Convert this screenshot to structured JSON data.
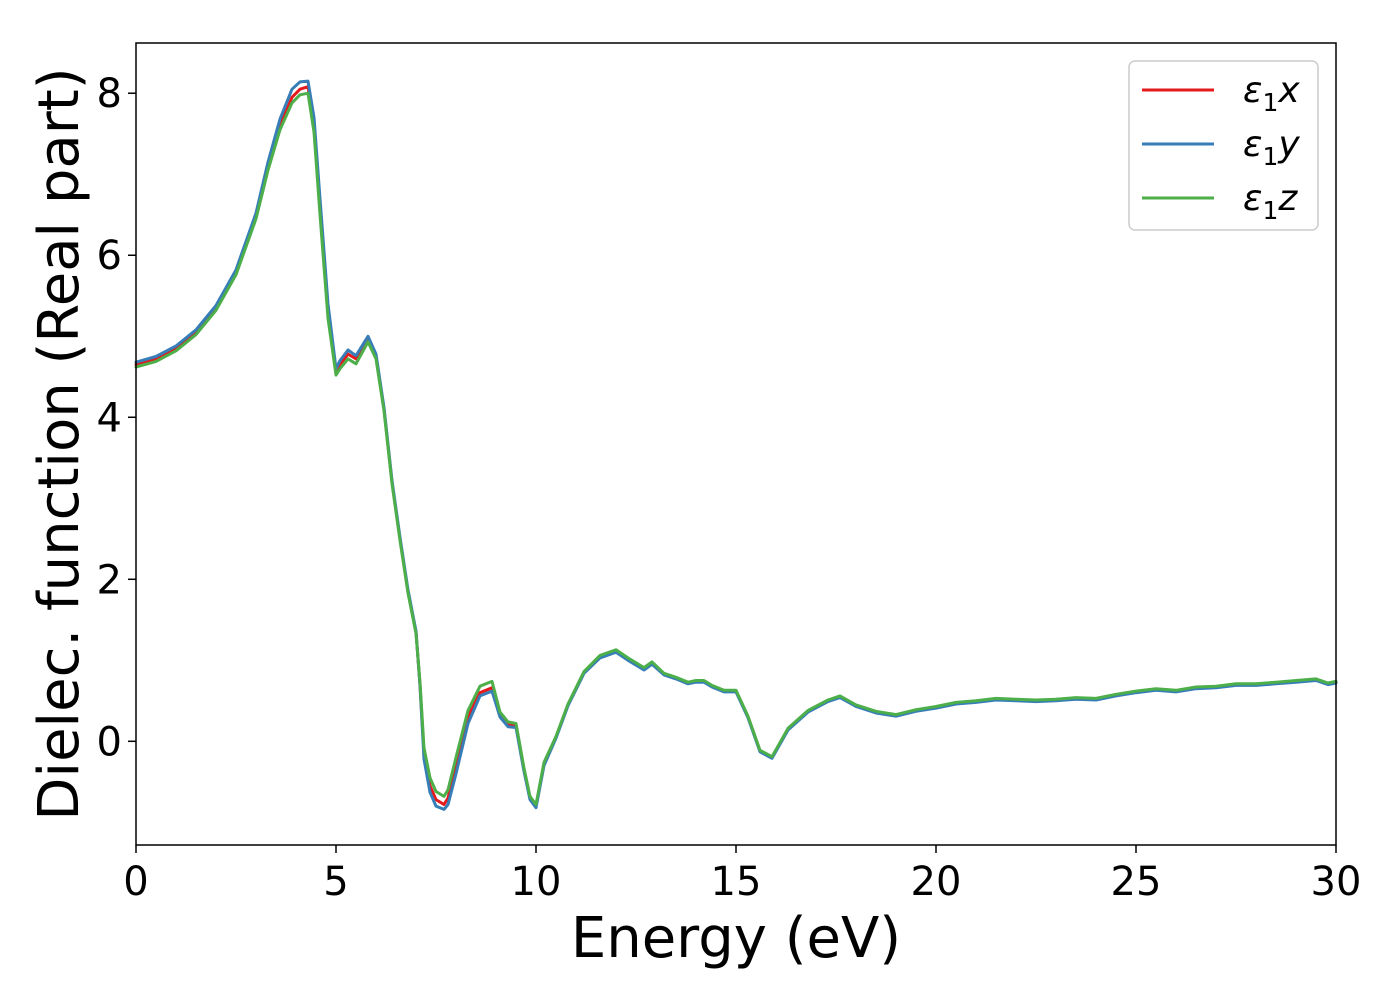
{
  "chart_data": {
    "type": "line",
    "title": "",
    "xlabel": "Energy (eV)",
    "ylabel": "Dielec. function (Real part)",
    "xlim": [
      0,
      30
    ],
    "ylim": [
      -1.28,
      8.62
    ],
    "xticks": [
      0,
      5,
      10,
      15,
      20,
      25,
      30
    ],
    "yticks": [
      0,
      2,
      4,
      6,
      8
    ],
    "grid": false,
    "legend_position": "top-right",
    "series": [
      {
        "name": "ε₁x",
        "label_base": "ε",
        "label_sub": "1",
        "label_axis": "x",
        "color": "#e41a1c",
        "x": [
          0,
          0.5,
          1,
          1.5,
          2,
          2.5,
          3,
          3.3,
          3.6,
          3.9,
          4.1,
          4.3,
          4.45,
          4.6,
          4.8,
          5.0,
          5.1,
          5.3,
          5.5,
          5.8,
          6.0,
          6.2,
          6.4,
          6.6,
          6.8,
          7.0,
          7.1,
          7.2,
          7.35,
          7.5,
          7.7,
          7.8,
          8.0,
          8.3,
          8.6,
          8.9,
          9.1,
          9.3,
          9.5,
          9.7,
          9.85,
          10.0,
          10.2,
          10.5,
          10.8,
          11.2,
          11.6,
          12.0,
          12.3,
          12.7,
          12.9,
          13.2,
          13.5,
          13.8,
          14.0,
          14.2,
          14.4,
          14.7,
          15.0,
          15.3,
          15.6,
          15.9,
          16.3,
          16.8,
          17.3,
          17.6,
          18.0,
          18.5,
          19.0,
          19.5,
          20.0,
          20.5,
          21.0,
          21.5,
          22.0,
          22.5,
          23.0,
          23.5,
          24.0,
          24.5,
          25.0,
          25.5,
          26.0,
          26.5,
          27.0,
          27.5,
          28.0,
          28.5,
          29.0,
          29.5,
          29.8,
          30.0
        ],
        "y": [
          4.65,
          4.72,
          4.85,
          5.05,
          5.35,
          5.8,
          6.5,
          7.1,
          7.6,
          7.95,
          8.05,
          8.08,
          7.6,
          6.6,
          5.3,
          4.57,
          4.65,
          4.78,
          4.72,
          4.97,
          4.75,
          4.1,
          3.2,
          2.5,
          1.85,
          1.35,
          0.7,
          -0.15,
          -0.55,
          -0.72,
          -0.78,
          -0.7,
          -0.3,
          0.3,
          0.6,
          0.66,
          0.32,
          0.2,
          0.2,
          -0.35,
          -0.7,
          -0.8,
          -0.28,
          0.05,
          0.45,
          0.85,
          1.05,
          1.12,
          1.02,
          0.9,
          0.97,
          0.83,
          0.78,
          0.72,
          0.74,
          0.74,
          0.68,
          0.62,
          0.62,
          0.3,
          -0.12,
          -0.2,
          0.15,
          0.37,
          0.5,
          0.55,
          0.44,
          0.36,
          0.32,
          0.38,
          0.42,
          0.47,
          0.49,
          0.52,
          0.51,
          0.5,
          0.51,
          0.53,
          0.52,
          0.57,
          0.61,
          0.64,
          0.62,
          0.66,
          0.67,
          0.7,
          0.7,
          0.72,
          0.74,
          0.76,
          0.71,
          0.73
        ]
      },
      {
        "name": "ε₁y",
        "label_base": "ε",
        "label_sub": "1",
        "label_axis": "y",
        "color": "#377eb8",
        "x": [
          0,
          0.5,
          1,
          1.5,
          2,
          2.5,
          3,
          3.3,
          3.6,
          3.9,
          4.1,
          4.3,
          4.45,
          4.6,
          4.8,
          5.0,
          5.1,
          5.3,
          5.5,
          5.8,
          6.0,
          6.2,
          6.4,
          6.6,
          6.8,
          7.0,
          7.1,
          7.2,
          7.35,
          7.5,
          7.7,
          7.8,
          8.0,
          8.3,
          8.6,
          8.9,
          9.1,
          9.3,
          9.5,
          9.7,
          9.85,
          10.0,
          10.2,
          10.5,
          10.8,
          11.2,
          11.6,
          12.0,
          12.3,
          12.7,
          12.9,
          13.2,
          13.5,
          13.8,
          14.0,
          14.2,
          14.4,
          14.7,
          15.0,
          15.3,
          15.6,
          15.9,
          16.3,
          16.8,
          17.3,
          17.6,
          18.0,
          18.5,
          19.0,
          19.5,
          20.0,
          20.5,
          21.0,
          21.5,
          22.0,
          22.5,
          23.0,
          23.5,
          24.0,
          24.5,
          25.0,
          25.5,
          26.0,
          26.5,
          27.0,
          27.5,
          28.0,
          28.5,
          29.0,
          29.5,
          29.8,
          30.0
        ],
        "y": [
          4.68,
          4.75,
          4.88,
          5.08,
          5.38,
          5.82,
          6.52,
          7.15,
          7.68,
          8.05,
          8.14,
          8.15,
          7.7,
          6.7,
          5.4,
          4.6,
          4.7,
          4.83,
          4.76,
          5.0,
          4.78,
          4.12,
          3.22,
          2.52,
          1.87,
          1.36,
          0.68,
          -0.22,
          -0.63,
          -0.8,
          -0.84,
          -0.78,
          -0.4,
          0.22,
          0.56,
          0.62,
          0.3,
          0.18,
          0.17,
          -0.37,
          -0.72,
          -0.82,
          -0.3,
          0.04,
          0.44,
          0.84,
          1.03,
          1.1,
          1.0,
          0.88,
          0.95,
          0.82,
          0.77,
          0.71,
          0.73,
          0.73,
          0.67,
          0.61,
          0.61,
          0.29,
          -0.13,
          -0.21,
          0.14,
          0.36,
          0.49,
          0.54,
          0.43,
          0.35,
          0.31,
          0.37,
          0.41,
          0.46,
          0.48,
          0.51,
          0.5,
          0.49,
          0.5,
          0.52,
          0.51,
          0.56,
          0.6,
          0.63,
          0.61,
          0.65,
          0.66,
          0.69,
          0.69,
          0.71,
          0.73,
          0.75,
          0.7,
          0.72
        ]
      },
      {
        "name": "ε₁z",
        "label_base": "ε",
        "label_sub": "1",
        "label_axis": "z",
        "color": "#4daf4a",
        "x": [
          0,
          0.5,
          1,
          1.5,
          2,
          2.5,
          3,
          3.3,
          3.6,
          3.9,
          4.1,
          4.3,
          4.45,
          4.6,
          4.8,
          5.0,
          5.1,
          5.3,
          5.5,
          5.8,
          6.0,
          6.2,
          6.4,
          6.6,
          6.8,
          7.0,
          7.1,
          7.2,
          7.35,
          7.5,
          7.7,
          7.8,
          8.0,
          8.3,
          8.6,
          8.9,
          9.1,
          9.3,
          9.5,
          9.7,
          9.85,
          10.0,
          10.2,
          10.5,
          10.8,
          11.2,
          11.6,
          12.0,
          12.3,
          12.7,
          12.9,
          13.2,
          13.5,
          13.8,
          14.0,
          14.2,
          14.4,
          14.7,
          15.0,
          15.3,
          15.6,
          15.9,
          16.3,
          16.8,
          17.3,
          17.6,
          18.0,
          18.5,
          19.0,
          19.5,
          20.0,
          20.5,
          21.0,
          21.5,
          22.0,
          22.5,
          23.0,
          23.5,
          24.0,
          24.5,
          25.0,
          25.5,
          26.0,
          26.5,
          27.0,
          27.5,
          28.0,
          28.5,
          29.0,
          29.5,
          29.8,
          30.0
        ],
        "y": [
          4.62,
          4.69,
          4.82,
          5.02,
          5.32,
          5.76,
          6.45,
          7.05,
          7.55,
          7.88,
          7.98,
          8.0,
          7.52,
          6.5,
          5.22,
          4.52,
          4.6,
          4.72,
          4.66,
          4.93,
          4.72,
          4.08,
          3.18,
          2.48,
          1.83,
          1.33,
          0.73,
          -0.08,
          -0.45,
          -0.62,
          -0.68,
          -0.6,
          -0.2,
          0.38,
          0.68,
          0.74,
          0.36,
          0.24,
          0.22,
          -0.33,
          -0.68,
          -0.78,
          -0.26,
          0.06,
          0.46,
          0.86,
          1.06,
          1.13,
          1.03,
          0.91,
          0.98,
          0.84,
          0.79,
          0.73,
          0.75,
          0.75,
          0.69,
          0.63,
          0.63,
          0.31,
          -0.11,
          -0.19,
          0.16,
          0.38,
          0.51,
          0.56,
          0.45,
          0.37,
          0.33,
          0.39,
          0.43,
          0.48,
          0.5,
          0.53,
          0.52,
          0.51,
          0.52,
          0.54,
          0.53,
          0.58,
          0.62,
          0.65,
          0.63,
          0.67,
          0.68,
          0.71,
          0.71,
          0.73,
          0.75,
          0.77,
          0.72,
          0.74
        ]
      }
    ]
  }
}
